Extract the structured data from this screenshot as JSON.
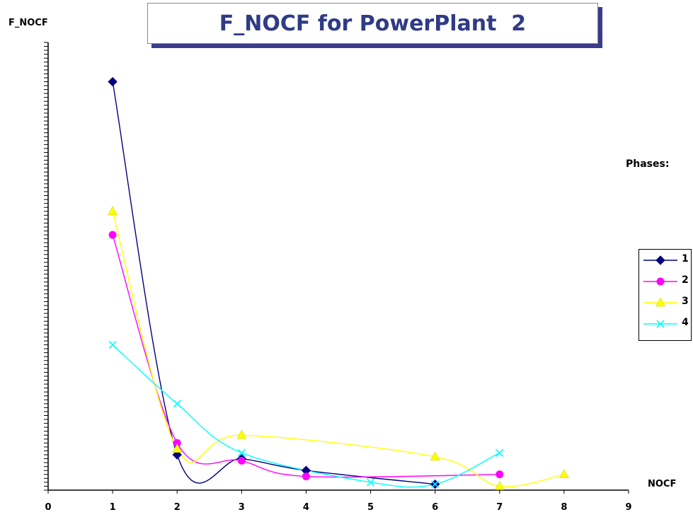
{
  "chart_data": {
    "type": "line",
    "title": "F_NOCF for PowerPlant  2",
    "ylabel": "F_NOCF",
    "xlabel": "NOCF",
    "legend_title": "Phases:",
    "legend_placement": "right",
    "xlim": [
      0,
      9
    ],
    "ylim": [
      0,
      114
    ],
    "x_ticks": [
      "0",
      "1",
      "2",
      "3",
      "4",
      "5",
      "6",
      "7",
      "8",
      "9"
    ],
    "y_top_tick": "114",
    "grid": false,
    "smooth": true,
    "series": [
      {
        "name": "1",
        "color": "#000080",
        "marker": "diamond",
        "points": [
          [
            1,
            104
          ],
          [
            2,
            9
          ],
          [
            3,
            8
          ],
          [
            4,
            5
          ],
          [
            6,
            1.5
          ]
        ]
      },
      {
        "name": "2",
        "color": "#ff00ff",
        "marker": "circle",
        "points": [
          [
            1,
            65
          ],
          [
            2,
            12
          ],
          [
            3,
            7.5
          ],
          [
            4,
            3.5
          ],
          [
            7,
            4
          ]
        ]
      },
      {
        "name": "3",
        "color": "#ffff00",
        "marker": "triangle",
        "points": [
          [
            1,
            71
          ],
          [
            2,
            10.5
          ],
          [
            3,
            14
          ],
          [
            6,
            8.5
          ],
          [
            7,
            1
          ],
          [
            8,
            4
          ]
        ]
      },
      {
        "name": "4",
        "color": "#00ffff",
        "marker": "x",
        "points": [
          [
            1,
            37
          ],
          [
            2,
            22
          ],
          [
            3,
            9.5
          ],
          [
            5,
            2
          ],
          [
            6,
            1.5
          ],
          [
            7,
            9.5
          ]
        ]
      }
    ]
  }
}
